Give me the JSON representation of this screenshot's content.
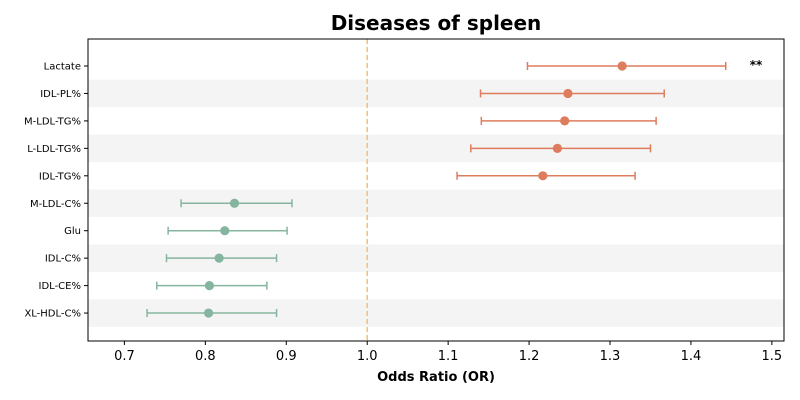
{
  "chart_data": {
    "type": "forest",
    "title": "Diseases of spleen",
    "xlabel": "Odds Ratio (OR)",
    "ylabel": "",
    "xlim": [
      0.655,
      1.515
    ],
    "xticks": [
      "0.7",
      "0.8",
      "0.9",
      "1.0",
      "1.1",
      "1.2",
      "1.3",
      "1.4",
      "1.5"
    ],
    "reference_line": 1.0,
    "grid": false,
    "row_banding": true,
    "colors": {
      "risk": "#de7c5e",
      "protective": "#86b59f",
      "reference": "#f5c27a",
      "band": "#f4f4f4"
    },
    "items": [
      {
        "label": "Lactate",
        "or": 1.315,
        "lower": 1.198,
        "upper": 1.443,
        "annotation": "**"
      },
      {
        "label": "IDL-PL%",
        "or": 1.248,
        "lower": 1.14,
        "upper": 1.367,
        "annotation": ""
      },
      {
        "label": "M-LDL-TG%",
        "or": 1.244,
        "lower": 1.141,
        "upper": 1.357,
        "annotation": ""
      },
      {
        "label": "L-LDL-TG%",
        "or": 1.235,
        "lower": 1.128,
        "upper": 1.35,
        "annotation": ""
      },
      {
        "label": "IDL-TG%",
        "or": 1.217,
        "lower": 1.111,
        "upper": 1.331,
        "annotation": ""
      },
      {
        "label": "M-LDL-C%",
        "or": 0.836,
        "lower": 0.77,
        "upper": 0.907,
        "annotation": ""
      },
      {
        "label": "Glu",
        "or": 0.824,
        "lower": 0.754,
        "upper": 0.901,
        "annotation": ""
      },
      {
        "label": "IDL-C%",
        "or": 0.817,
        "lower": 0.752,
        "upper": 0.888,
        "annotation": ""
      },
      {
        "label": "IDL-CE%",
        "or": 0.805,
        "lower": 0.74,
        "upper": 0.876,
        "annotation": ""
      },
      {
        "label": "XL-HDL-C%",
        "or": 0.804,
        "lower": 0.728,
        "upper": 0.888,
        "annotation": ""
      }
    ]
  }
}
